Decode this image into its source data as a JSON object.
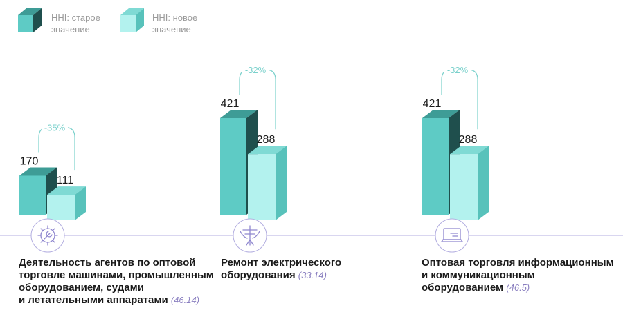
{
  "legend": [
    {
      "label_line1": "HHI: старое",
      "label_line2": "значение",
      "color": "#5ecbc5"
    },
    {
      "label_line1": "HHI: новое",
      "label_line2": "значение",
      "color": "#b3f2ee"
    }
  ],
  "colors": {
    "old_front": "#5ecbc5",
    "old_top": "#3e9c96",
    "old_side": "#1f4f4d",
    "new_front": "#b3f2ee",
    "new_top": "#7fdad4",
    "new_side": "#58c2bb",
    "change": "#7bd1cc",
    "axis": "#b3aee0",
    "icon": "#8f87cf"
  },
  "chart_data": {
    "type": "bar",
    "categories": [
      "Деятельность агентов по оптовой торговле машинами, промышленным оборудованием, судами и летательными аппаратами",
      "Ремонт электрического оборудования",
      "Оптовая торговля информационным и коммуникационным оборудованием"
    ],
    "category_codes": [
      "(46.14)",
      "(33.14)",
      "(46.5)"
    ],
    "series": [
      {
        "name": "HHI: старое значение",
        "values": [
          170,
          421,
          421
        ]
      },
      {
        "name": "HHI: новое значение",
        "values": [
          111,
          288,
          288
        ]
      }
    ],
    "changes": [
      "-35%",
      "-32%",
      "-32%"
    ],
    "ylim": [
      0,
      421
    ]
  },
  "categories_display": [
    {
      "lines": [
        "Деятельность агентов по оптовой",
        "торговле машинами, промышленным",
        "оборудованием, судами",
        "и летательными аппаратами"
      ],
      "code": "(46.14)",
      "icon": "gear-wrench-icon"
    },
    {
      "lines": [
        "Ремонт электрического",
        "оборудования"
      ],
      "code": "(33.14)",
      "icon": "power-pole-icon"
    },
    {
      "lines": [
        "Оптовая торговля информационным",
        "и коммуникационным",
        "оборудованием"
      ],
      "code": "(46.5)",
      "icon": "laptop-icon"
    }
  ]
}
